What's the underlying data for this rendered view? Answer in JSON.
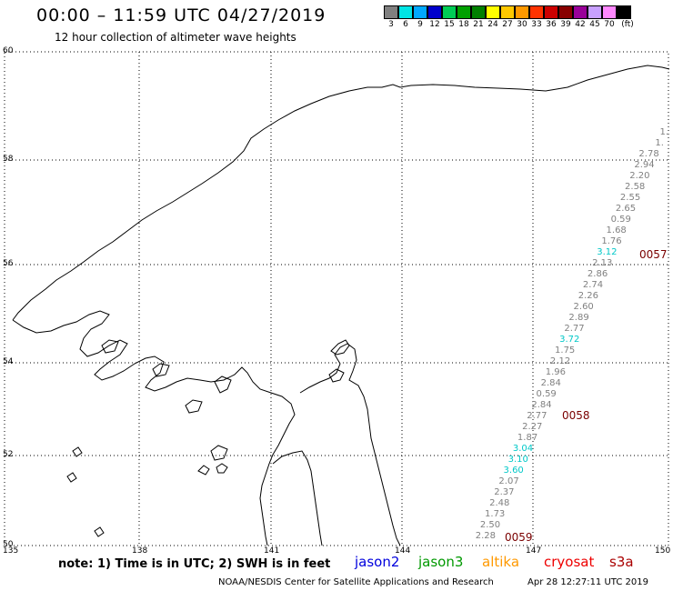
{
  "header": {
    "title": "00:00 – 11:59 UTC 04/27/2019",
    "subtitle": "12 hour collection of altimeter wave heights"
  },
  "legend": {
    "colors": [
      "#808080",
      "#00e5e5",
      "#00a8ff",
      "#0000cc",
      "#00cc55",
      "#00a000",
      "#008000",
      "#ffff00",
      "#ffc800",
      "#ff9900",
      "#ff3300",
      "#cc0000",
      "#880000",
      "#990099",
      "#c8a0ff",
      "#ff88ff",
      "#000000"
    ],
    "labels": [
      "3",
      "6",
      "9",
      "12",
      "15",
      "18",
      "21",
      "24",
      "27",
      "30",
      "33",
      "36",
      "39",
      "42",
      "45",
      "70",
      "(ft)"
    ]
  },
  "axes": {
    "lat_labels": [
      "60",
      "58",
      "56",
      "54",
      "52",
      "50"
    ],
    "lon_labels": [
      "135",
      "138",
      "141",
      "144",
      "147",
      "150"
    ]
  },
  "swh": [
    {
      "v": "1.",
      "c": "#808080"
    },
    {
      "v": "1.",
      "c": "#808080"
    },
    {
      "v": "2.78",
      "c": "#808080"
    },
    {
      "v": "2.94",
      "c": "#808080"
    },
    {
      "v": "2.20",
      "c": "#808080"
    },
    {
      "v": "2.58",
      "c": "#808080"
    },
    {
      "v": "2.55",
      "c": "#808080"
    },
    {
      "v": "2.65",
      "c": "#808080"
    },
    {
      "v": "0.59",
      "c": "#808080"
    },
    {
      "v": "1.68",
      "c": "#808080"
    },
    {
      "v": "1.76",
      "c": "#808080"
    },
    {
      "v": "3.12",
      "c": "#00c8c8"
    },
    {
      "v": "2.13",
      "c": "#808080"
    },
    {
      "v": "2.86",
      "c": "#808080"
    },
    {
      "v": "2.74",
      "c": "#808080"
    },
    {
      "v": "2.26",
      "c": "#808080"
    },
    {
      "v": "2.60",
      "c": "#808080"
    },
    {
      "v": "2.89",
      "c": "#808080"
    },
    {
      "v": "2.77",
      "c": "#808080"
    },
    {
      "v": "3.72",
      "c": "#00c8c8"
    },
    {
      "v": "1.75",
      "c": "#808080"
    },
    {
      "v": "2.12",
      "c": "#808080"
    },
    {
      "v": "1.96",
      "c": "#808080"
    },
    {
      "v": "2.84",
      "c": "#808080"
    },
    {
      "v": "0.59",
      "c": "#808080"
    },
    {
      "v": "2.84",
      "c": "#808080"
    },
    {
      "v": "2.77",
      "c": "#808080"
    },
    {
      "v": "2.27",
      "c": "#808080"
    },
    {
      "v": "1.87",
      "c": "#808080"
    },
    {
      "v": "3.04",
      "c": "#00c8c8"
    },
    {
      "v": "3.10",
      "c": "#00c8c8"
    },
    {
      "v": "3.60",
      "c": "#00c8c8"
    },
    {
      "v": "2.07",
      "c": "#808080"
    },
    {
      "v": "2.37",
      "c": "#808080"
    },
    {
      "v": "2.48",
      "c": "#808080"
    },
    {
      "v": "1.73",
      "c": "#808080"
    },
    {
      "v": "2.50",
      "c": "#808080"
    },
    {
      "v": "2.28",
      "c": "#808080"
    }
  ],
  "pass_times": [
    "0057",
    "0058",
    "0059"
  ],
  "footer": {
    "note": "note: 1) Time is in UTC; 2) SWH is in feet",
    "satellites": [
      {
        "name": "jason2",
        "color": "#0000dd"
      },
      {
        "name": "jason3",
        "color": "#009900"
      },
      {
        "name": "altika",
        "color": "#ff9900"
      },
      {
        "name": "cryosat",
        "color": "#ee0000"
      },
      {
        "name": "s3a",
        "color": "#aa0000"
      }
    ],
    "credit": "NOAA/NESDIS Center for Satellite Applications and Research",
    "timestamp": "Apr 28 12:27:11 UTC 2019"
  }
}
